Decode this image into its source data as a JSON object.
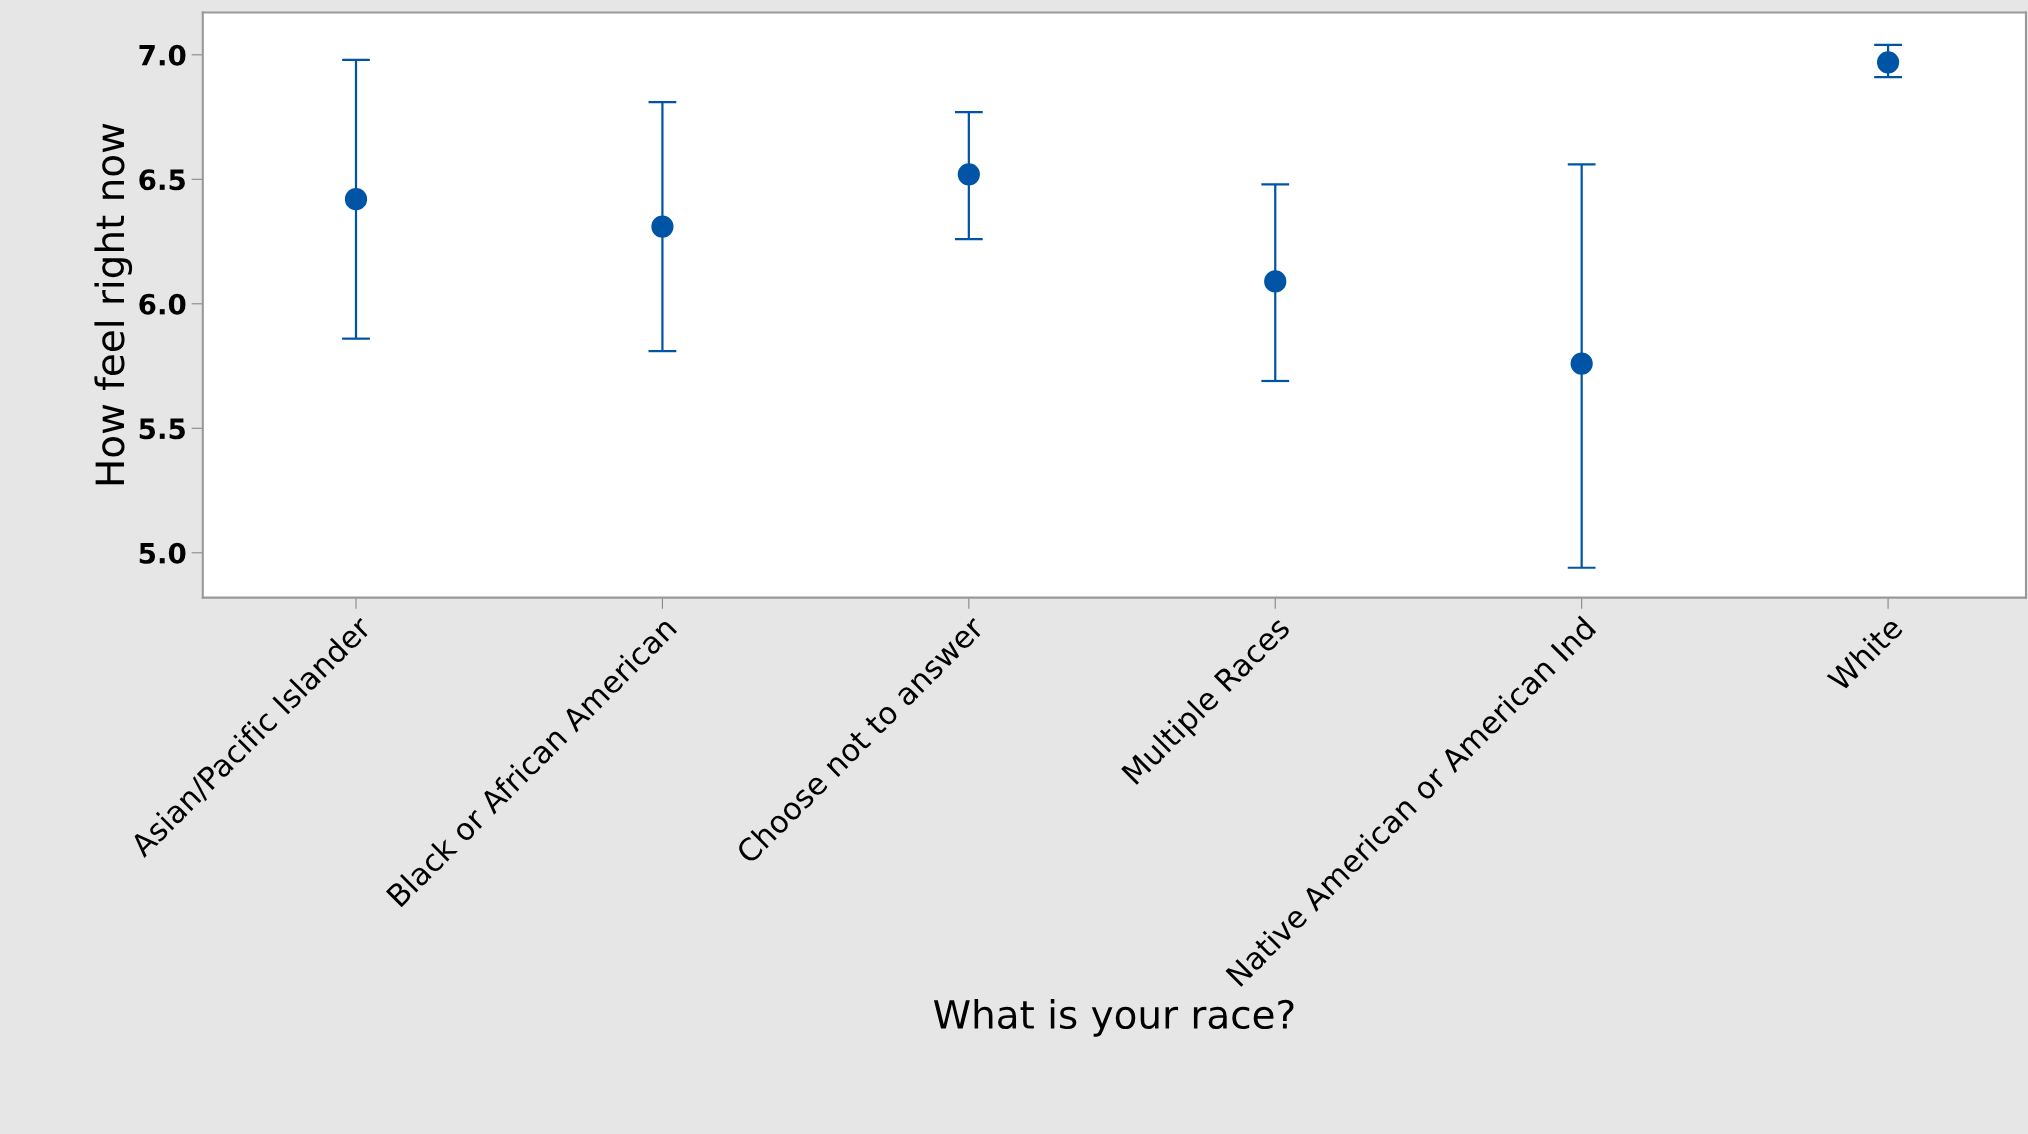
{
  "chart_data": {
    "type": "scatter",
    "xlabel": "What is your race?",
    "ylabel": "How feel right now",
    "categories": [
      "Asian/Pacific Islander",
      "Black or African American",
      "Choose not to answer",
      "Multiple Races",
      "Native American or American Ind",
      "White"
    ],
    "values": [
      6.42,
      6.31,
      6.52,
      6.09,
      5.76,
      6.97
    ],
    "errors": [
      [
        5.86,
        6.98
      ],
      [
        5.81,
        6.81
      ],
      [
        6.26,
        6.77
      ],
      [
        5.69,
        6.48
      ],
      [
        4.94,
        6.56
      ],
      [
        6.91,
        7.04
      ]
    ],
    "color": "#0054a6",
    "marker": "circle",
    "ylim": [
      4.82,
      7.17
    ],
    "yticks": [
      {
        "value": 5.0,
        "label": "5.0"
      },
      {
        "value": 5.5,
        "label": "5.5"
      },
      {
        "value": 6.0,
        "label": "6.0"
      },
      {
        "value": 6.5,
        "label": "6.5"
      },
      {
        "value": 7.0,
        "label": "7.0"
      }
    ],
    "grid": false,
    "legend": false
  }
}
